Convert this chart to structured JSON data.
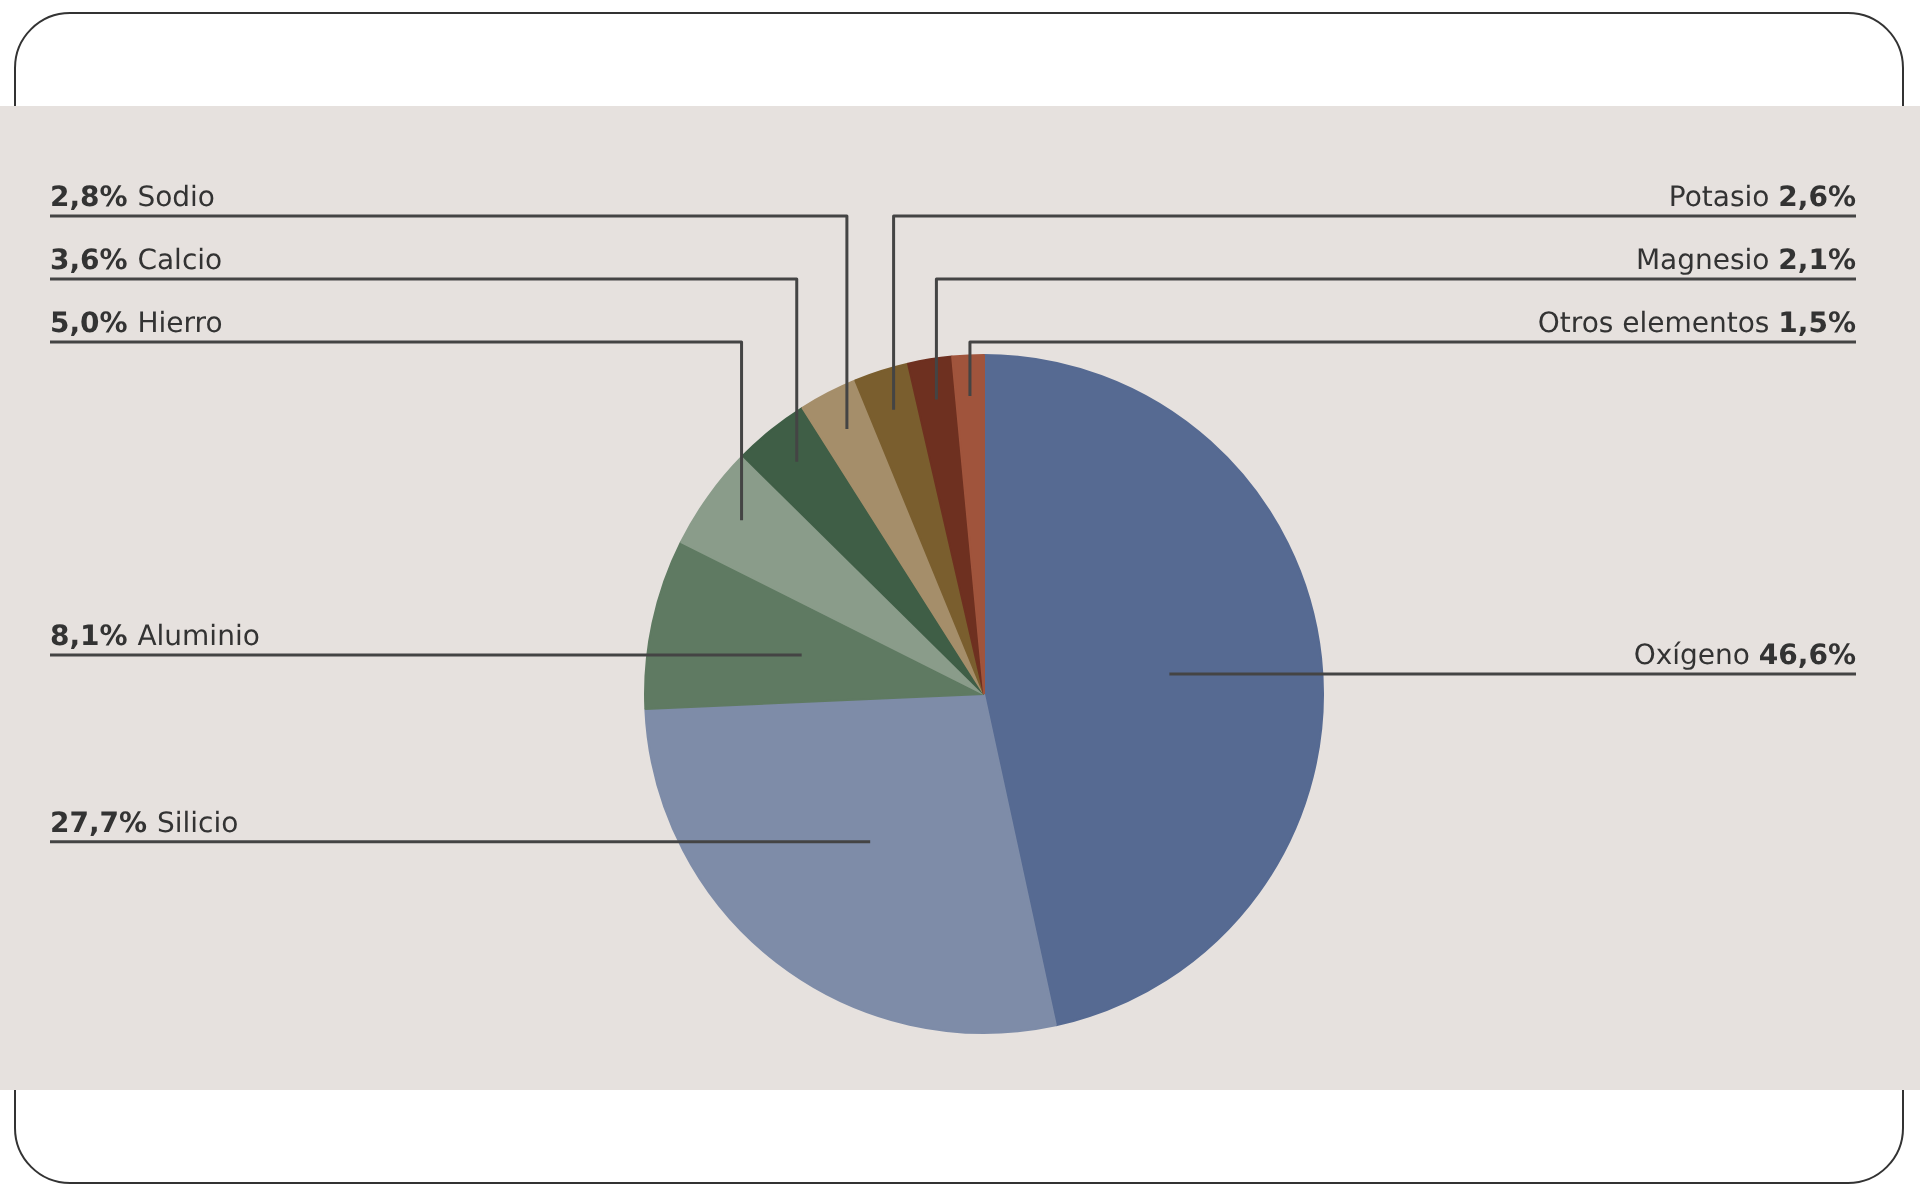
{
  "chart_data": {
    "type": "pie",
    "categories": [
      "Oxígeno",
      "Silicio",
      "Aluminio",
      "Hierro",
      "Calcio",
      "Sodio",
      "Potasio",
      "Magnesio",
      "Otros elementos"
    ],
    "values": [
      46.6,
      27.7,
      8.1,
      5.0,
      3.6,
      2.8,
      2.6,
      2.1,
      1.5
    ],
    "colors": [
      "#566a92",
      "#7e8ca8",
      "#5f7a62",
      "#8a9c8a",
      "#3f5e46",
      "#a58e6a",
      "#7a5e2e",
      "#6e3020",
      "#a0543c"
    ],
    "value_labels": [
      "46,6%",
      "27,7%",
      "8,1%",
      "5,0%",
      "3,6%",
      "2,8%",
      "2,6%",
      "2,1%",
      "1,5%"
    ]
  }
}
